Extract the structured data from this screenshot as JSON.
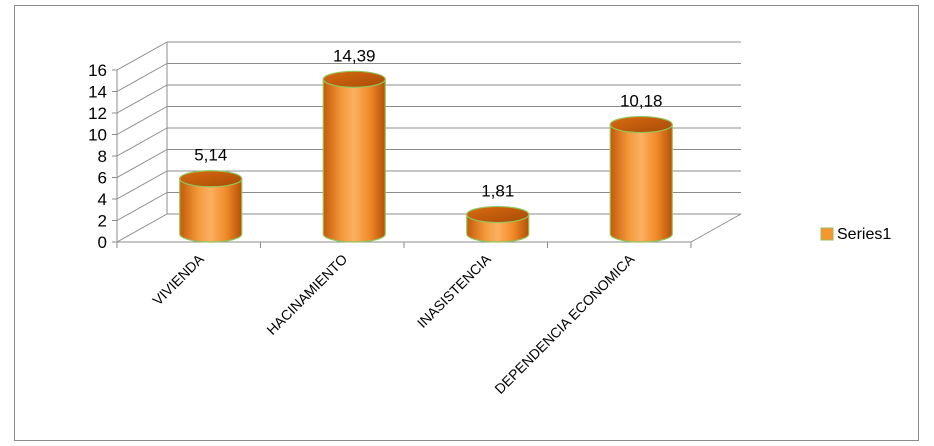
{
  "chart_data": {
    "type": "bar",
    "style": "3d-cylinder",
    "categories": [
      "VIVIENDA",
      "HACINAMIENTO",
      "INASISTENCIA",
      "DEPENDENCIA ECONOMICA"
    ],
    "series": [
      {
        "name": "Series1",
        "values": [
          5.14,
          14.39,
          1.81,
          10.18
        ],
        "labels": [
          "5,14",
          "14,39",
          "1,81",
          "10,18"
        ],
        "color": "#f7952f"
      }
    ],
    "y_ticks": [
      "0",
      "2",
      "4",
      "6",
      "8",
      "10",
      "12",
      "14",
      "16"
    ],
    "ylim": [
      0,
      16
    ],
    "grid": true,
    "legend_position": "right"
  }
}
